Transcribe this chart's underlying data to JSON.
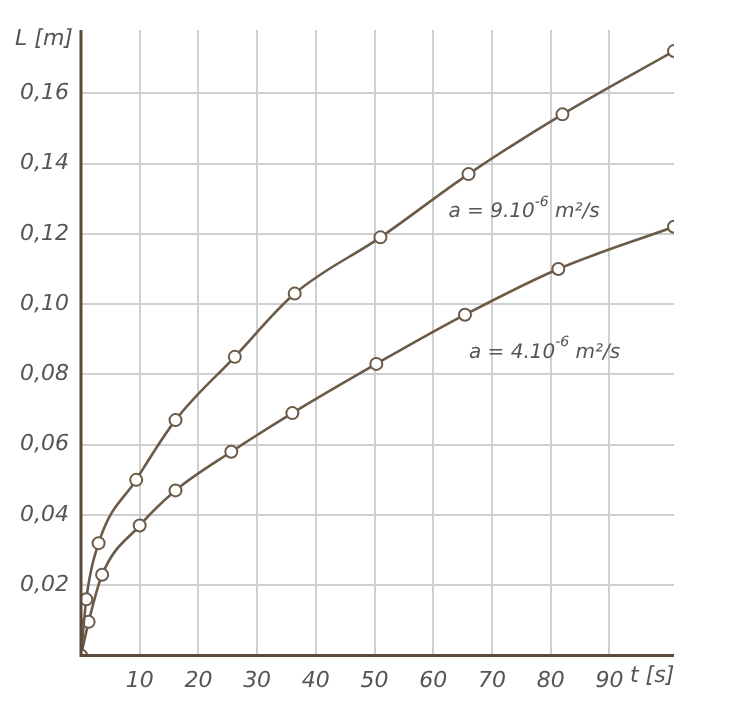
{
  "chart_data": {
    "type": "line",
    "xlabel": "t [s]",
    "ylabel": "L [m]",
    "xlim": [
      0,
      101
    ],
    "xticks": [
      10,
      20,
      30,
      40,
      50,
      60,
      70,
      80,
      90
    ],
    "ylim": [
      0,
      0.178
    ],
    "yticks": [
      {
        "value": 0.02,
        "label": "0,02"
      },
      {
        "value": 0.04,
        "label": "0,04"
      },
      {
        "value": 0.06,
        "label": "0,06"
      },
      {
        "value": 0.08,
        "label": "0,08"
      },
      {
        "value": 0.1,
        "label": "0,10"
      },
      {
        "value": 0.12,
        "label": "0,12"
      },
      {
        "value": 0.14,
        "label": "0,14"
      },
      {
        "value": 0.16,
        "label": "0,16"
      }
    ],
    "grid": true,
    "legend": false,
    "marker": "circle",
    "line_style": "solid",
    "series": [
      {
        "name": "a = 9.10$^{-6}$ m²/s",
        "color": "#6b5a48",
        "x": [
          0,
          0.9,
          3,
          9.4,
          16.1,
          26.2,
          36.4,
          51,
          66,
          82,
          101
        ],
        "values": [
          0,
          0.016,
          0.032,
          0.05,
          0.067,
          0.085,
          0.103,
          0.119,
          0.137,
          0.154,
          0.172
        ]
      },
      {
        "name": "a = 4.10$^{-6}$ m²/s",
        "color": "#6b5a48",
        "x": [
          0,
          1.3,
          3.6,
          10,
          16.1,
          25.6,
          36,
          50.3,
          65.4,
          81.3,
          101
        ],
        "values": [
          0,
          0.0096,
          0.023,
          0.037,
          0.047,
          0.058,
          0.069,
          0.083,
          0.097,
          0.11,
          0.122
        ]
      }
    ]
  }
}
